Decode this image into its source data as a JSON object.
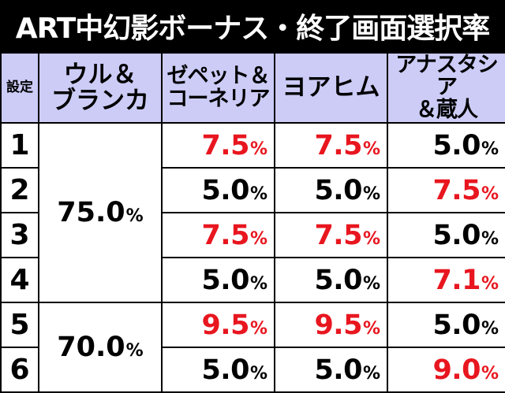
{
  "title": "ART中幻影ボーナス・終了画面選択率",
  "headers": {
    "setting": "設定",
    "col1": [
      "ウル＆",
      "ブランカ"
    ],
    "col2": [
      "ゼペット＆",
      "コーネリア"
    ],
    "col3": [
      "ヨアヒム"
    ],
    "col4": [
      "アナスタシア",
      "＆蔵人"
    ]
  },
  "percent_sign": "%",
  "groups": [
    {
      "value": "75.0"
    },
    {
      "value": "70.0"
    }
  ],
  "rows": [
    {
      "setting": "1",
      "c2": "7.5",
      "c3": "7.5",
      "c4": "5.0"
    },
    {
      "setting": "2",
      "c2": "5.0",
      "c3": "5.0",
      "c4": "7.5"
    },
    {
      "setting": "3",
      "c2": "7.5",
      "c3": "7.5",
      "c4": "5.0"
    },
    {
      "setting": "4",
      "c2": "5.0",
      "c3": "5.0",
      "c4": "7.1"
    },
    {
      "setting": "5",
      "c2": "9.5",
      "c3": "9.5",
      "c4": "5.0"
    },
    {
      "setting": "6",
      "c2": "5.0",
      "c3": "5.0",
      "c4": "9.0"
    }
  ],
  "colors": {
    "highlight_red": "#e8161f",
    "header_bg": "#ccccf7",
    "title_bg": "#000000"
  },
  "highlighted_cells": [
    "rows.0.c2",
    "rows.0.c3",
    "rows.1.c4",
    "rows.2.c2",
    "rows.2.c3",
    "rows.3.c4",
    "rows.4.c2",
    "rows.4.c3",
    "rows.5.c4"
  ]
}
